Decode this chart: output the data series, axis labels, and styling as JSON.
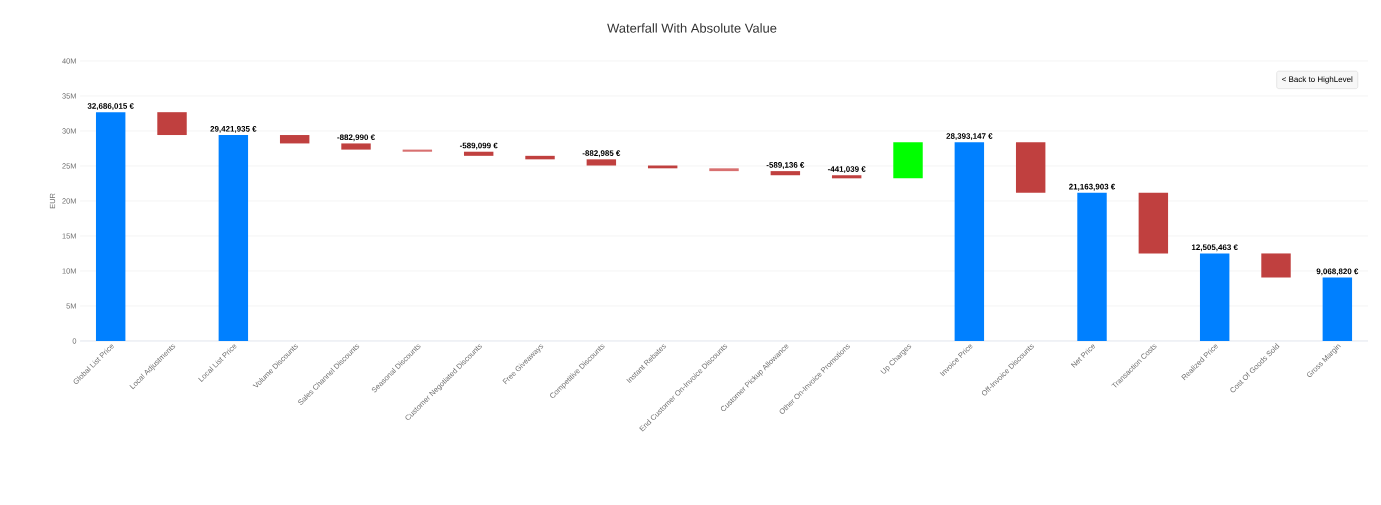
{
  "chart_data": {
    "type": "bar",
    "title": "Waterfall With Absolute Value",
    "ylabel": "EUR",
    "categories": [
      "Global List Price",
      "Local Adjustments",
      "Local List Price",
      "Volume Discounts",
      "Sales Channel Discounts",
      "Seasonal Discounts",
      "Customer Negotiated Discounts",
      "Free Giveaways",
      "Competitive Discounts",
      "Instant Rebates",
      "End Customer On-Invoice Discounts",
      "Customer Pickup Allowance",
      "Other On-Invoice Promotions",
      "Up Charges",
      "Invoice Price",
      "Off-Invoice Discounts",
      "Net Price",
      "Transaction Costs",
      "Realized Price",
      "Cost Of Goods Sold",
      "Gross Margin"
    ],
    "values": [
      32686015,
      -3264080,
      29421935,
      -1200000,
      -882990,
      -300000,
      -589099,
      -500000,
      -882985,
      -400000,
      -400000,
      -589136,
      -441039,
      5156461,
      28393147,
      -7229244,
      21163903,
      -8658440,
      12505463,
      -3436643,
      9068820
    ],
    "base": [
      0,
      32686015,
      0,
      29421935,
      28221935,
      27338945,
      27038945,
      26449846,
      25949846,
      25066861,
      24666861,
      24266861,
      23677725,
      23236686,
      0,
      28393147,
      0,
      21163903,
      0,
      12505463,
      0
    ],
    "colors": [
      "#0080ff",
      "#c0403f",
      "#0080ff",
      "#c0403f",
      "#c0403f",
      "#d87070",
      "#c0403f",
      "#c0403f",
      "#c0403f",
      "#c0403f",
      "#d87070",
      "#c0403f",
      "#c0403f",
      "#00ff00",
      "#0080ff",
      "#c0403f",
      "#0080ff",
      "#c0403f",
      "#0080ff",
      "#c0403f",
      "#0080ff"
    ],
    "value_labels": [
      "32,686,015 €",
      null,
      "29,421,935 €",
      null,
      "-882,990 €",
      null,
      "-589,099 €",
      null,
      "-882,985 €",
      null,
      null,
      "-589,136 €",
      "-441,039 €",
      null,
      "28,393,147 €",
      null,
      "21,163,903 €",
      null,
      "12,505,463 €",
      null,
      "9,068,820 €"
    ],
    "ylim": [
      0,
      40000000
    ],
    "yticks": [
      0,
      {
        "value": 5000000,
        "label": "5M"
      },
      {
        "value": 10000000,
        "label": "10M"
      },
      {
        "value": 15000000,
        "label": "15M"
      },
      {
        "value": 20000000,
        "label": "20M"
      },
      {
        "value": 25000000,
        "label": "25M"
      },
      {
        "value": 30000000,
        "label": "30M"
      },
      {
        "value": 35000000,
        "label": "35M"
      },
      {
        "value": 40000000,
        "label": "40M"
      }
    ],
    "grid": "y",
    "annotations": [
      "< Back to HighLevel"
    ]
  }
}
